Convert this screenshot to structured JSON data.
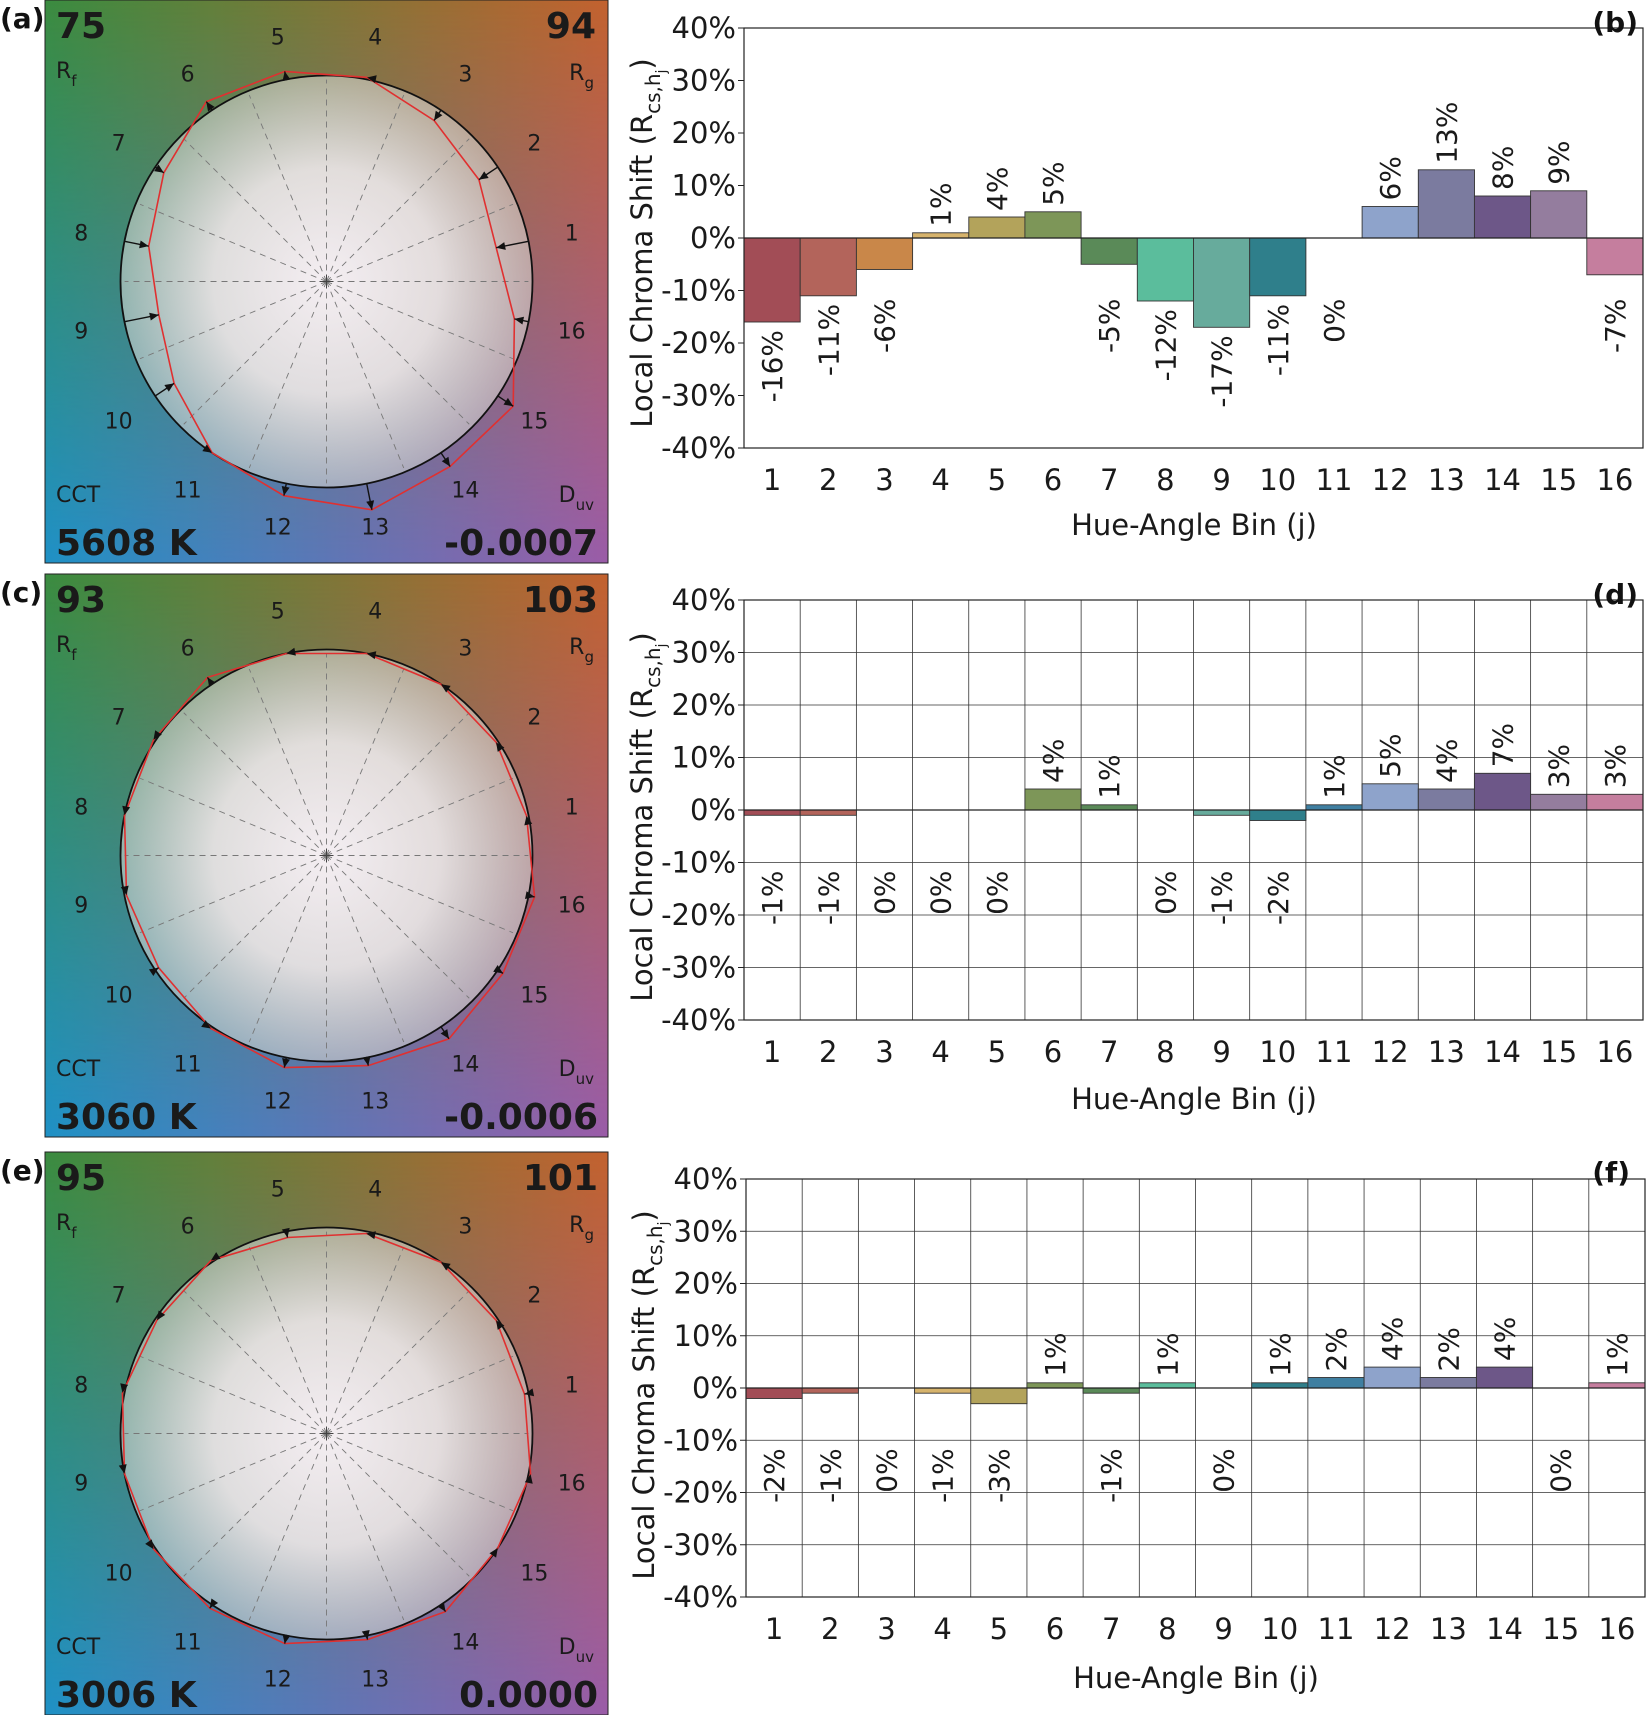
{
  "chart_data": [
    {
      "type": "radar",
      "panel_label": "(a)",
      "rf": "75",
      "rf_label_main": "R",
      "rf_label_sub": "f",
      "rg": "94",
      "rg_label_main": "R",
      "rg_label_sub": "g",
      "cct_label": "CCT",
      "cct": "5608 K",
      "duv_label_main": "D",
      "duv_label_sub": "uv",
      "duv": "-0.0007",
      "bin_labels": [
        "1",
        "2",
        "3",
        "4",
        "5",
        "6",
        "7",
        "8",
        "9",
        "10",
        "11",
        "12",
        "13",
        "14",
        "15",
        "16"
      ],
      "chroma_shift": [
        -16,
        -11,
        -6,
        1,
        4,
        5,
        -5,
        -12,
        -17,
        -11,
        0,
        6,
        13,
        8,
        9,
        -7
      ]
    },
    {
      "type": "bar",
      "panel_label": "(b)",
      "grid": false,
      "xlabel": "Hue-Angle Bin (j)",
      "ylabel": "Local Chroma Shift (R",
      "ylabel_sub": "cs,h",
      "ylabel_subsub": "j",
      "ylim": [
        -40,
        40
      ],
      "yticks": [
        "40%",
        "30%",
        "20%",
        "10%",
        "0%",
        "-10%",
        "-20%",
        "-30%",
        "-40%"
      ],
      "categories": [
        "1",
        "2",
        "3",
        "4",
        "5",
        "6",
        "7",
        "8",
        "9",
        "10",
        "11",
        "12",
        "13",
        "14",
        "15",
        "16"
      ],
      "values": [
        -16,
        -11,
        -6,
        1,
        4,
        5,
        -5,
        -12,
        -17,
        -11,
        0,
        6,
        13,
        8,
        9,
        -7
      ],
      "data_labels": [
        "-16%",
        "-11%",
        "-6%",
        "1%",
        "4%",
        "5%",
        "-5%",
        "-12%",
        "-17%",
        "-11%",
        "0%",
        "6%",
        "13%",
        "8%",
        "9%",
        "-7%"
      ]
    },
    {
      "type": "radar",
      "panel_label": "(c)",
      "rf": "93",
      "rf_label_main": "R",
      "rf_label_sub": "f",
      "rg": "103",
      "rg_label_main": "R",
      "rg_label_sub": "g",
      "cct_label": "CCT",
      "cct": "3060 K",
      "duv_label_main": "D",
      "duv_label_sub": "uv",
      "duv": "-0.0006",
      "bin_labels": [
        "1",
        "2",
        "3",
        "4",
        "5",
        "6",
        "7",
        "8",
        "9",
        "10",
        "11",
        "12",
        "13",
        "14",
        "15",
        "16"
      ],
      "chroma_shift": [
        -1,
        -1,
        0,
        0,
        0,
        4,
        1,
        0,
        -1,
        -2,
        1,
        5,
        4,
        7,
        3,
        3
      ]
    },
    {
      "type": "bar",
      "panel_label": "(d)",
      "grid": true,
      "xlabel": "Hue-Angle Bin (j)",
      "ylabel": "Local Chroma Shift (R",
      "ylabel_sub": "cs,h",
      "ylabel_subsub": "j",
      "ylim": [
        -40,
        40
      ],
      "yticks": [
        "40%",
        "30%",
        "20%",
        "10%",
        "0%",
        "-10%",
        "-20%",
        "-30%",
        "-40%"
      ],
      "categories": [
        "1",
        "2",
        "3",
        "4",
        "5",
        "6",
        "7",
        "8",
        "9",
        "10",
        "11",
        "12",
        "13",
        "14",
        "15",
        "16"
      ],
      "values": [
        -1,
        -1,
        0,
        0,
        0,
        4,
        1,
        0,
        -1,
        -2,
        1,
        5,
        4,
        7,
        3,
        3
      ],
      "data_labels": [
        "-1%",
        "-1%",
        "0%",
        "0%",
        "0%",
        "4%",
        "1%",
        "0%",
        "-1%",
        "-2%",
        "1%",
        "5%",
        "4%",
        "7%",
        "3%",
        "3%"
      ]
    },
    {
      "type": "radar",
      "panel_label": "(e)",
      "rf": "95",
      "rf_label_main": "R",
      "rf_label_sub": "f",
      "rg": "101",
      "rg_label_main": "R",
      "rg_label_sub": "g",
      "cct_label": "CCT",
      "cct": "3006 K",
      "duv_label_main": "D",
      "duv_label_sub": "uv",
      "duv": "0.0000",
      "bin_labels": [
        "1",
        "2",
        "3",
        "4",
        "5",
        "6",
        "7",
        "8",
        "9",
        "10",
        "11",
        "12",
        "13",
        "14",
        "15",
        "16"
      ],
      "chroma_shift": [
        -2,
        -1,
        0,
        -1,
        -3,
        1,
        -1,
        1,
        0,
        1,
        2,
        4,
        2,
        4,
        0,
        1
      ]
    },
    {
      "type": "bar",
      "panel_label": "(f)",
      "grid": true,
      "xlabel": "Hue-Angle Bin (j)",
      "ylabel": "Local Chroma Shift (R",
      "ylabel_sub": "cs,h",
      "ylabel_subsub": "j",
      "ylim": [
        -40,
        40
      ],
      "yticks": [
        "40%",
        "30%",
        "20%",
        "10%",
        "0%",
        "-10%",
        "-20%",
        "-30%",
        "-40%"
      ],
      "categories": [
        "1",
        "2",
        "3",
        "4",
        "5",
        "6",
        "7",
        "8",
        "9",
        "10",
        "11",
        "12",
        "13",
        "14",
        "15",
        "16"
      ],
      "values": [
        -2,
        -1,
        0,
        -1,
        -3,
        1,
        -1,
        1,
        0,
        1,
        2,
        4,
        2,
        4,
        0,
        1
      ],
      "data_labels": [
        "-2%",
        "-1%",
        "0%",
        "-1%",
        "-3%",
        "1%",
        "-1%",
        "1%",
        "0%",
        "1%",
        "2%",
        "4%",
        "2%",
        "4%",
        "0%",
        "1%"
      ]
    }
  ],
  "colors": {
    "bins": [
      "#a24d56",
      "#b3645b",
      "#c98749",
      "#d6b36c",
      "#b3a35b",
      "#7d9658",
      "#5a8a58",
      "#5bbd9c",
      "#67ab9c",
      "#2f7f8b",
      "#3f7fa1",
      "#8ea3cb",
      "#7b7b9f",
      "#6d5788",
      "#947d9e",
      "#c57e9e"
    ],
    "test_polygon": "#e03030",
    "reference_circle": "#111111",
    "corner_top_left": "#3b8c40",
    "corner_top_right": "#c3622f",
    "corner_bottom_left": "#1f91c6",
    "corner_bottom_right": "#9a5ca8"
  }
}
